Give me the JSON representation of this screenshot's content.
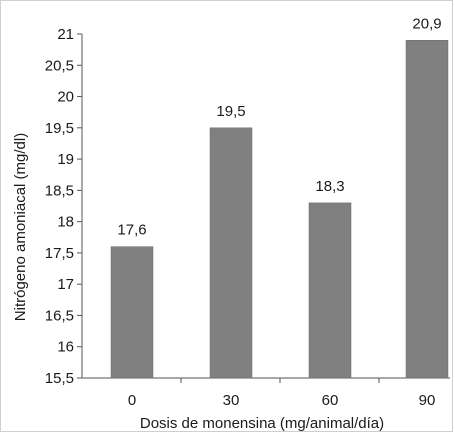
{
  "chart_data": {
    "type": "bar",
    "title": "",
    "xlabel": "Dosis de monensina (mg/animal/día)",
    "ylabel": "Nitrógeno amoniacal (mg/dl)",
    "categories": [
      "0",
      "30",
      "60",
      "90"
    ],
    "values": [
      17.6,
      19.5,
      18.3,
      20.9
    ],
    "data_labels": [
      "17,6",
      "19,5",
      "18,3",
      "20,9"
    ],
    "ylim": [
      15.5,
      21
    ],
    "yticks": [
      15.5,
      16,
      16.5,
      17,
      17.5,
      18,
      18.5,
      19,
      19.5,
      20,
      20.5,
      21
    ],
    "ytick_labels": [
      "15,5",
      "16",
      "16,5",
      "17",
      "17,5",
      "18",
      "18,5",
      "19",
      "19,5",
      "20",
      "20,5",
      "21"
    ],
    "grid": false,
    "legend": "none",
    "bar_color": "#808080"
  }
}
